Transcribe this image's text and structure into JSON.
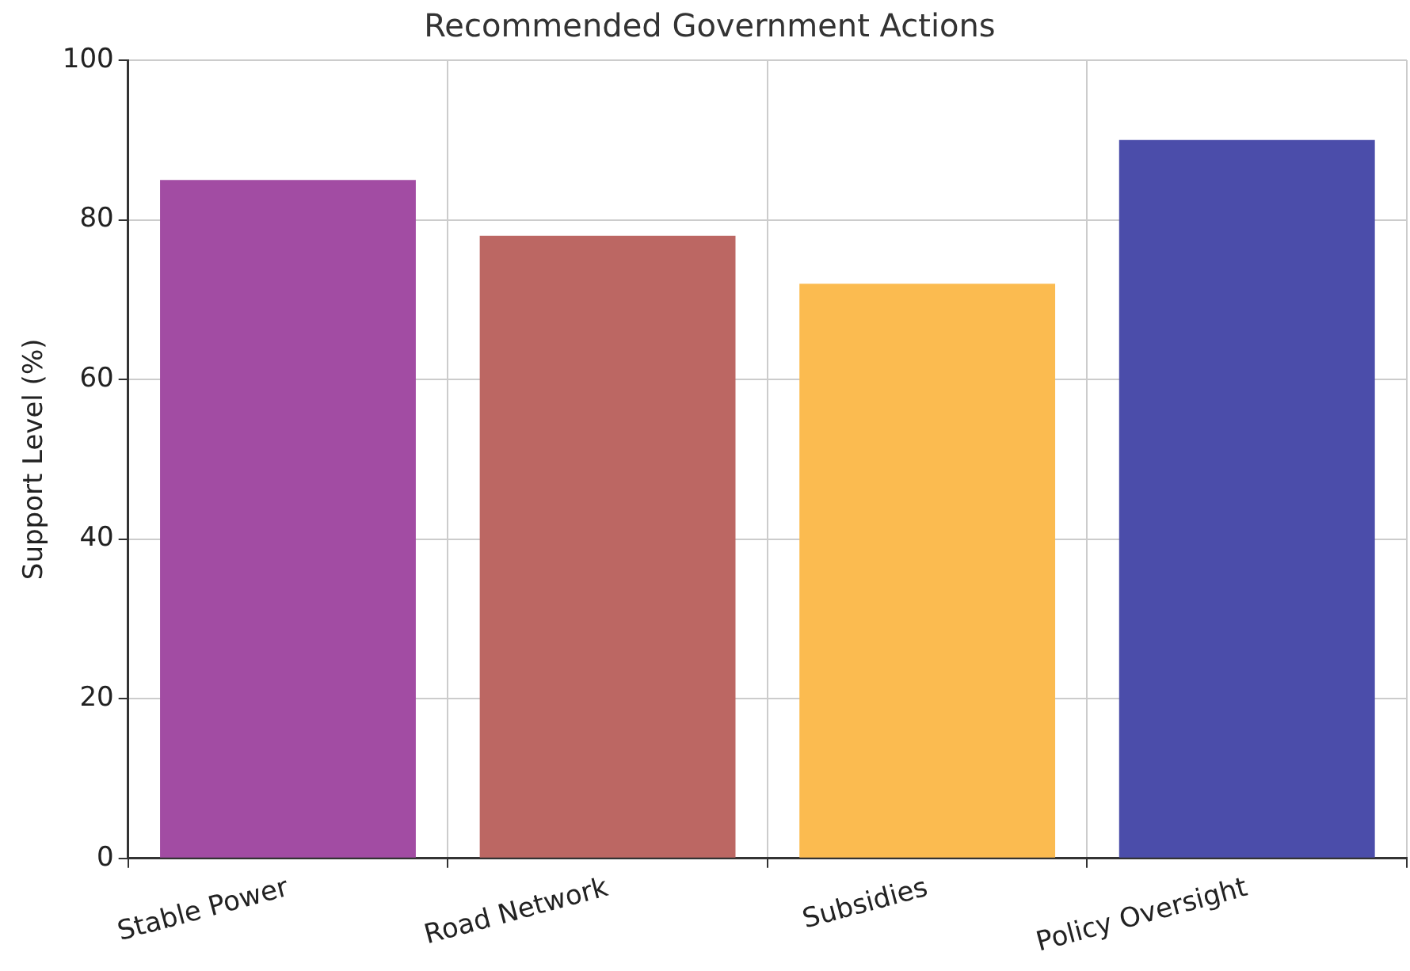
{
  "chart_data": {
    "type": "bar",
    "title": "Recommended Government Actions",
    "ylabel": "Support Level (%)",
    "categories": [
      "Stable Power",
      "Road Network",
      "Subsidies",
      "Policy Oversight"
    ],
    "values": [
      85,
      78,
      72,
      90
    ],
    "colors": [
      "#a24ca3",
      "#bc6763",
      "#fbbb50",
      "#4b4daa"
    ],
    "ylim": [
      0,
      100
    ],
    "yticks": [
      0,
      20,
      40,
      60,
      80,
      100
    ],
    "grid": true
  }
}
